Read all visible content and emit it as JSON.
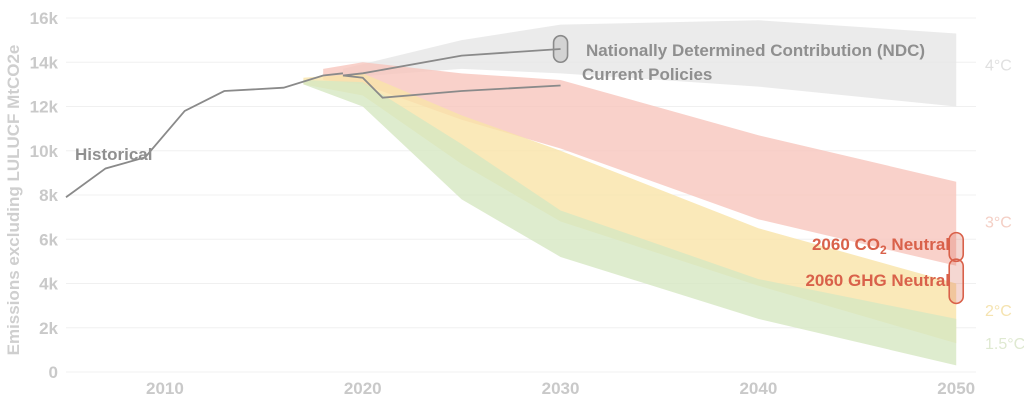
{
  "chart_data": {
    "type": "area",
    "title": "",
    "xlabel": "",
    "ylabel": "Emissions excluding LULUCF MtCO2e",
    "xlim": [
      2005,
      2051
    ],
    "ylim": [
      0,
      16000
    ],
    "grid": true,
    "x_ticks": [
      2010,
      2020,
      2030,
      2040,
      2050
    ],
    "x_tick_labels": [
      "2010",
      "2020",
      "2030",
      "2040",
      "2050"
    ],
    "y_ticks": [
      0,
      2000,
      4000,
      6000,
      8000,
      10000,
      12000,
      14000,
      16000
    ],
    "y_tick_labels": [
      "0",
      "2k",
      "4k",
      "6k",
      "8k",
      "10k",
      "12k",
      "14k",
      "16k"
    ],
    "series": [
      {
        "name": "Historical",
        "kind": "line",
        "color": "#8a8a8a",
        "x": [
          2005,
          2007,
          2009,
          2011,
          2013,
          2016,
          2018,
          2019
        ],
        "y": [
          7900,
          9200,
          9700,
          11800,
          12700,
          12850,
          13400,
          13500
        ]
      },
      {
        "name": "Nationally Determined Contribution (NDC)",
        "kind": "line",
        "color": "#8a8a8a",
        "x": [
          2019,
          2020,
          2025,
          2030
        ],
        "y": [
          13400,
          13500,
          14300,
          14600
        ]
      },
      {
        "name": "Current Policies",
        "kind": "line",
        "color": "#8a8a8a",
        "x": [
          2019,
          2020,
          2021,
          2025,
          2030
        ],
        "y": [
          13400,
          13300,
          12400,
          12700,
          12950
        ]
      },
      {
        "name": "4°C",
        "kind": "band",
        "color": "#e6e6e6",
        "x": [
          2019,
          2025,
          2030,
          2040,
          2050
        ],
        "upper": [
          13700,
          15000,
          15700,
          15900,
          15300
        ],
        "lower": [
          13300,
          13700,
          13500,
          12900,
          12000
        ]
      },
      {
        "name": "3°C",
        "kind": "band",
        "color": "#f8c6bd",
        "x": [
          2018,
          2020,
          2025,
          2030,
          2040,
          2050
        ],
        "upper": [
          13700,
          14000,
          13500,
          13200,
          10700,
          8600
        ],
        "lower": [
          13200,
          13000,
          11400,
          10100,
          6900,
          4800
        ]
      },
      {
        "name": "2°C",
        "kind": "band",
        "color": "#f9e4a8",
        "x": [
          2017,
          2020,
          2025,
          2030,
          2040,
          2050
        ],
        "upper": [
          13300,
          13500,
          11600,
          10000,
          6500,
          4000
        ],
        "lower": [
          13000,
          12500,
          9400,
          6800,
          3900,
          1300
        ]
      },
      {
        "name": "1.5°C",
        "kind": "band",
        "color": "#d6e7c2",
        "x": [
          2017,
          2020,
          2025,
          2030,
          2040,
          2050
        ],
        "upper": [
          13200,
          13100,
          10300,
          7300,
          4200,
          2400
        ],
        "lower": [
          13000,
          12000,
          7800,
          5200,
          2400,
          300
        ]
      }
    ],
    "annotations": [
      {
        "text": "Historical",
        "x": 2005.5,
        "y": 9800
      },
      {
        "text": "Nationally Determined Contribution (NDC)",
        "x": 2030,
        "y": 14600
      },
      {
        "text": "Current Policies",
        "x": 2030,
        "y": 13500
      },
      {
        "text_main": "2060 CO",
        "text_sub": "2",
        "text_tail": " Neutral",
        "x": 2050,
        "y": 5600
      },
      {
        "text": "2060 GHG Neutral",
        "x": 2050,
        "y": 4200
      }
    ],
    "markers": [
      {
        "name": "ndc-range",
        "x": 2030,
        "y_range": [
          14000,
          15200
        ],
        "color": "#8a8a8a"
      },
      {
        "name": "co2-neutral-range",
        "x": 2050,
        "y_range": [
          5000,
          6300
        ],
        "color": "#d9614a"
      },
      {
        "name": "ghg-neutral-range",
        "x": 2050,
        "y_range": [
          3100,
          5100
        ],
        "color": "#d9614a"
      }
    ],
    "band_labels": [
      {
        "text": "4°C",
        "y": 13900,
        "color": "#e0e0e0"
      },
      {
        "text": "3°C",
        "y": 6800,
        "color": "#f4cfc5"
      },
      {
        "text": "2°C",
        "y": 2800,
        "color": "#f5e3b0"
      },
      {
        "text": "1.5°C",
        "y": 1300,
        "color": "#dfe9d1"
      }
    ]
  }
}
